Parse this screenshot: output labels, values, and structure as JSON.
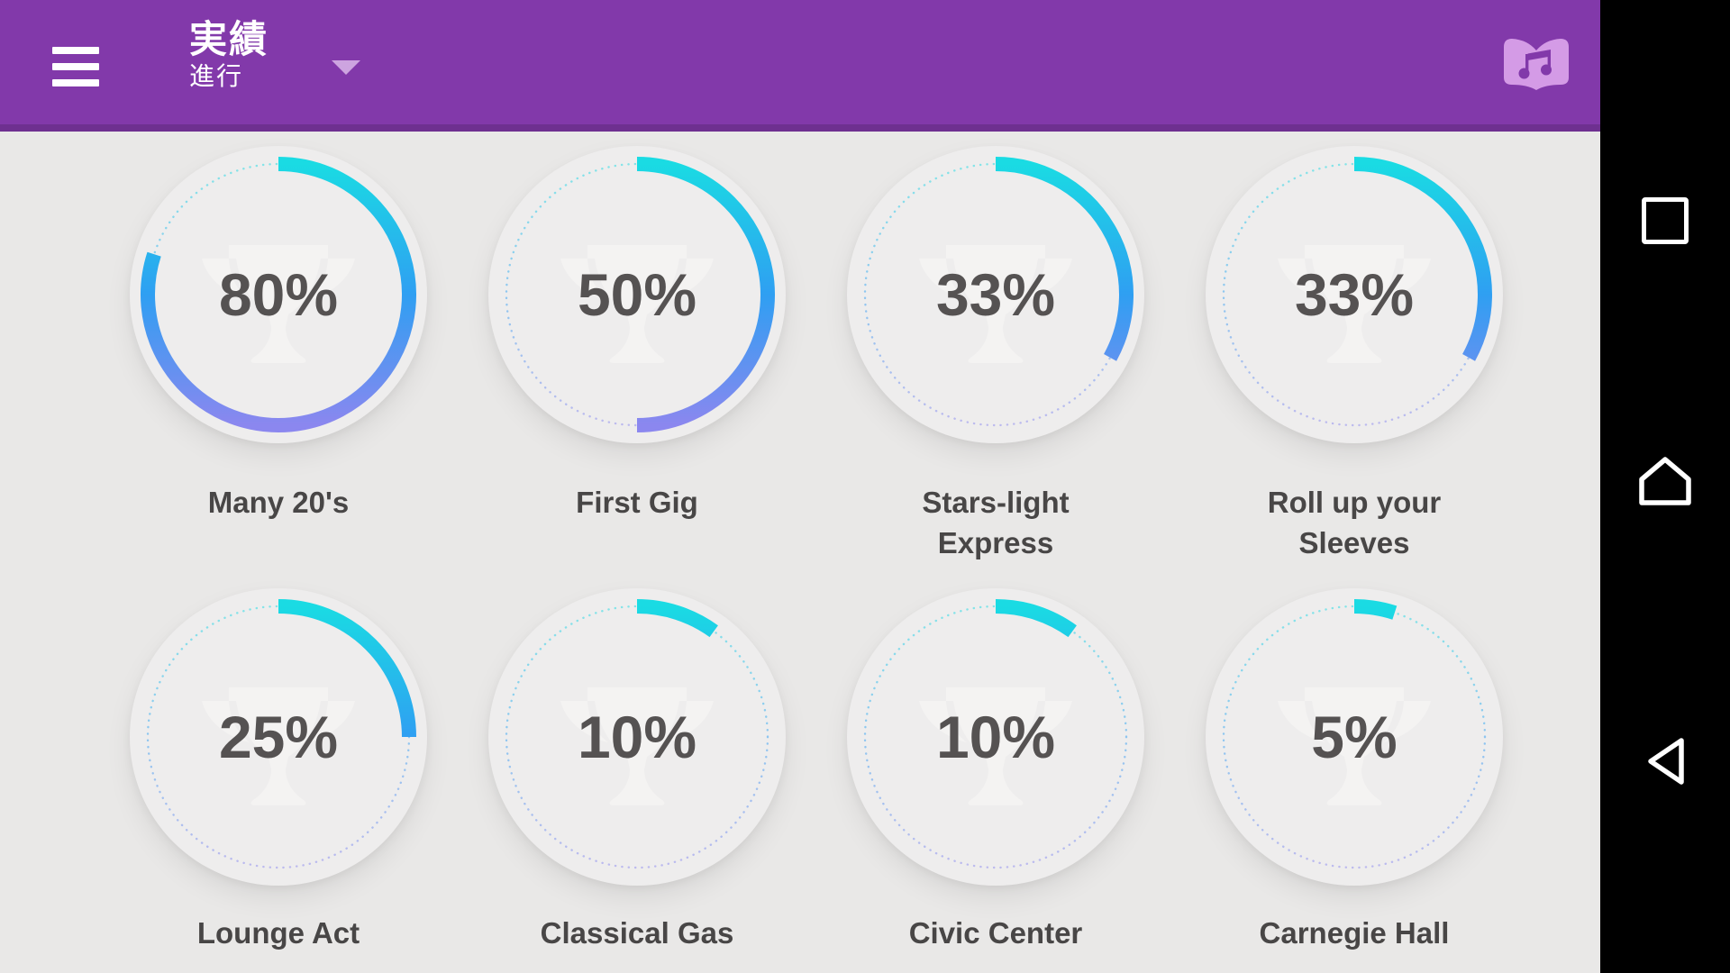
{
  "colors": {
    "page-bg": "#e9e8e7",
    "header-bg": "#8239aa",
    "header-shadow": "#6e3090",
    "header-caret": "#cda4e0",
    "header-icon": "#d49be6",
    "plate-bg": "#eeeded",
    "trophy-tint": "#f4f3f2",
    "percent-text": "#555252",
    "label-text": "#484646",
    "ring-start": "#1adbe3",
    "ring-mid": "#2f9ff2",
    "ring-end": "#8b87ef",
    "navbar-bg": "#000000",
    "nav-icon": "#ffffff"
  },
  "header": {
    "title": "実績",
    "subtitle": "進行"
  },
  "achievements": [
    {
      "label": "Many 20's",
      "percent": 80,
      "percent_label": "80%"
    },
    {
      "label": "First Gig",
      "percent": 50,
      "percent_label": "50%"
    },
    {
      "label": "Stars-light Express",
      "percent": 33,
      "percent_label": "33%"
    },
    {
      "label": "Roll up your Sleeves",
      "percent": 33,
      "percent_label": "33%"
    },
    {
      "label": "Lounge Act",
      "percent": 25,
      "percent_label": "25%"
    },
    {
      "label": "Classical Gas",
      "percent": 10,
      "percent_label": "10%"
    },
    {
      "label": "Civic Center",
      "percent": 10,
      "percent_label": "10%"
    },
    {
      "label": "Carnegie Hall",
      "percent": 5,
      "percent_label": "5%"
    }
  ],
  "nav_bar": {
    "buttons": [
      "recents",
      "home",
      "back"
    ]
  }
}
